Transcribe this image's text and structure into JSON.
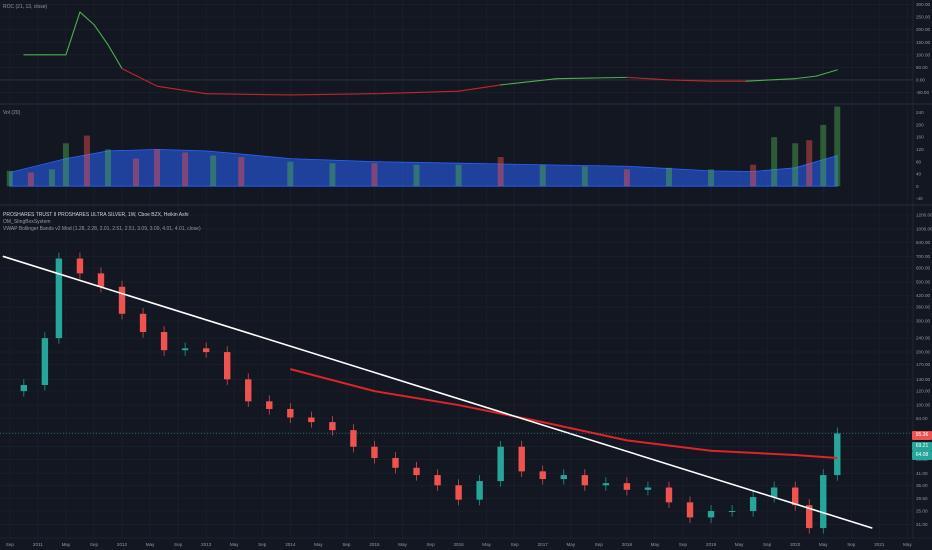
{
  "panes": {
    "roc": {
      "label": "ROC (21, 13, close)",
      "axis_labels": [
        "300.00",
        "250.00",
        "200.00",
        "150.00",
        "100.00",
        "50.00",
        "0.00",
        "-50.00"
      ]
    },
    "volume": {
      "label": "Vol (20)",
      "axis_labels": [
        "240",
        "200",
        "160",
        "120",
        "80",
        "40",
        "0",
        "-40"
      ]
    },
    "price": {
      "title": "PROSHARES TRUST II PROSHARES ULTRA SILVER, 1W, Cboe BZX, Heikin Ashi",
      "indicator1": "OM_StingBoxSystem",
      "indicator2": "VWAP Bollinger Bands v2 Mod (1.28, 2.28, 2.01, 2.51, 2.51, 3.09, 3.09, 4.01, 4.01, close)",
      "axis_labels": [
        "1200.00",
        "1000.00",
        "840.00",
        "700.00",
        "600.00",
        "500.00",
        "420.00",
        "360.00",
        "300.00",
        "240.00",
        "200.00",
        "170.00",
        "140.00",
        "120.00",
        "100.00",
        "84.00",
        "70.00",
        "58.00",
        "49.00",
        "41.00",
        "35.00",
        "29.50",
        "25.00",
        "21.00"
      ],
      "price_tags": [
        "95.36",
        "69.21",
        "64.08"
      ]
    }
  },
  "time_axis": [
    "Sep",
    "2011",
    "May",
    "Sep",
    "2012",
    "May",
    "Sep",
    "2013",
    "May",
    "Sep",
    "2014",
    "May",
    "Sep",
    "2015",
    "May",
    "Sep",
    "2016",
    "May",
    "Sep",
    "2017",
    "May",
    "Sep",
    "2018",
    "May",
    "Sep",
    "2019",
    "May",
    "Sep",
    "2020",
    "May",
    "Sep",
    "2021",
    "May"
  ],
  "colors": {
    "background": "#131722",
    "grid": "#1e222d",
    "bull": "#26a69a",
    "bear": "#ef5350",
    "trendline": "#ffffff",
    "vwap": "#e0232a",
    "roc_up": "#4caf50",
    "roc_down": "#c2262c",
    "vol_ma": "#2962ff"
  },
  "chart_data": [
    {
      "type": "line",
      "title": "ROC (21, 13, close)",
      "x": [
        "2010-11",
        "2011-02",
        "2011-05",
        "2011-07",
        "2011-09",
        "2011-11",
        "2012-01",
        "2012-06",
        "2013-01",
        "2014-01",
        "2015-01",
        "2016-01",
        "2016-07",
        "2017-03",
        "2018-01",
        "2018-07",
        "2019-01",
        "2019-06",
        "2020-01",
        "2020-04",
        "2020-07"
      ],
      "y": [
        100,
        100,
        100,
        270,
        220,
        140,
        45,
        -25,
        -55,
        -60,
        -55,
        -45,
        -20,
        5,
        10,
        0,
        -5,
        -5,
        5,
        15,
        40
      ],
      "ylim": [
        -80,
        310
      ]
    },
    {
      "type": "bar",
      "title": "Vol (20)",
      "x": [
        "2010-09",
        "2010-12",
        "2011-03",
        "2011-05",
        "2011-08",
        "2011-11",
        "2012-03",
        "2012-06",
        "2012-10",
        "2013-02",
        "2013-06",
        "2014-01",
        "2014-07",
        "2015-01",
        "2015-07",
        "2016-01",
        "2016-07",
        "2017-01",
        "2017-07",
        "2018-01",
        "2018-07",
        "2019-01",
        "2019-07",
        "2019-10",
        "2020-01",
        "2020-03",
        "2020-05",
        "2020-07"
      ],
      "values": [
        50,
        45,
        55,
        140,
        165,
        120,
        90,
        120,
        110,
        100,
        95,
        80,
        75,
        75,
        70,
        70,
        95,
        70,
        65,
        55,
        60,
        55,
        70,
        160,
        140,
        150,
        200,
        260
      ],
      "series": [
        {
          "name": "",
          "x": [
            "2010-09",
            "2011-05",
            "2011-11",
            "2012-06",
            "2013-01",
            "2013-06",
            "2014-01",
            "2015-01",
            "2016-01",
            "2017-01",
            "2018-01",
            "2019-01",
            "2019-07",
            "2020-01",
            "2020-07"
          ],
          "values": [
            45,
            90,
            115,
            120,
            115,
            105,
            90,
            80,
            75,
            70,
            65,
            50,
            48,
            60,
            100
          ]
        }
      ],
      "ylim": [
        -45,
        255
      ]
    },
    {
      "type": "line",
      "title": "PROSHARES TRUST II PROSHARES ULTRA SILVER, 1W, Cboe BZX, Heikin Ashi",
      "x": [
        "2010-08",
        "2010-11",
        "2011-02",
        "2011-04",
        "2011-07",
        "2011-10",
        "2012-01",
        "2012-04",
        "2012-07",
        "2012-10",
        "2013-01",
        "2013-04",
        "2013-07",
        "2013-10",
        "2014-01",
        "2014-04",
        "2014-07",
        "2014-10",
        "2015-01",
        "2015-04",
        "2015-07",
        "2015-10",
        "2016-01",
        "2016-04",
        "2016-07",
        "2016-10",
        "2017-01",
        "2017-04",
        "2017-07",
        "2017-10",
        "2018-01",
        "2018-04",
        "2018-07",
        "2018-10",
        "2019-01",
        "2019-04",
        "2019-07",
        "2019-10",
        "2020-01",
        "2020-03",
        "2020-05",
        "2020-07"
      ],
      "y": [
        120,
        130,
        240,
        680,
        560,
        470,
        330,
        260,
        205,
        210,
        200,
        140,
        105,
        95,
        85,
        80,
        72,
        58,
        50,
        44,
        40,
        35,
        29,
        37,
        58,
        42,
        38,
        40,
        35,
        36,
        33,
        34,
        28,
        23,
        25,
        25,
        30,
        34,
        27,
        20,
        40,
        69
      ],
      "series": [
        {
          "name": "VWAP",
          "x": [
            "2014-01",
            "2015-01",
            "2016-01",
            "2017-01",
            "2018-01",
            "2019-01",
            "2020-01",
            "2020-07"
          ],
          "values": [
            160,
            120,
            100,
            80,
            63,
            55,
            52,
            50
          ]
        },
        {
          "name": "Trend line",
          "x": [
            "2010-08",
            "2020-12"
          ],
          "values": [
            700,
            20
          ]
        }
      ],
      "ylim": [
        19,
        1300
      ],
      "log_scale": true
    }
  ]
}
